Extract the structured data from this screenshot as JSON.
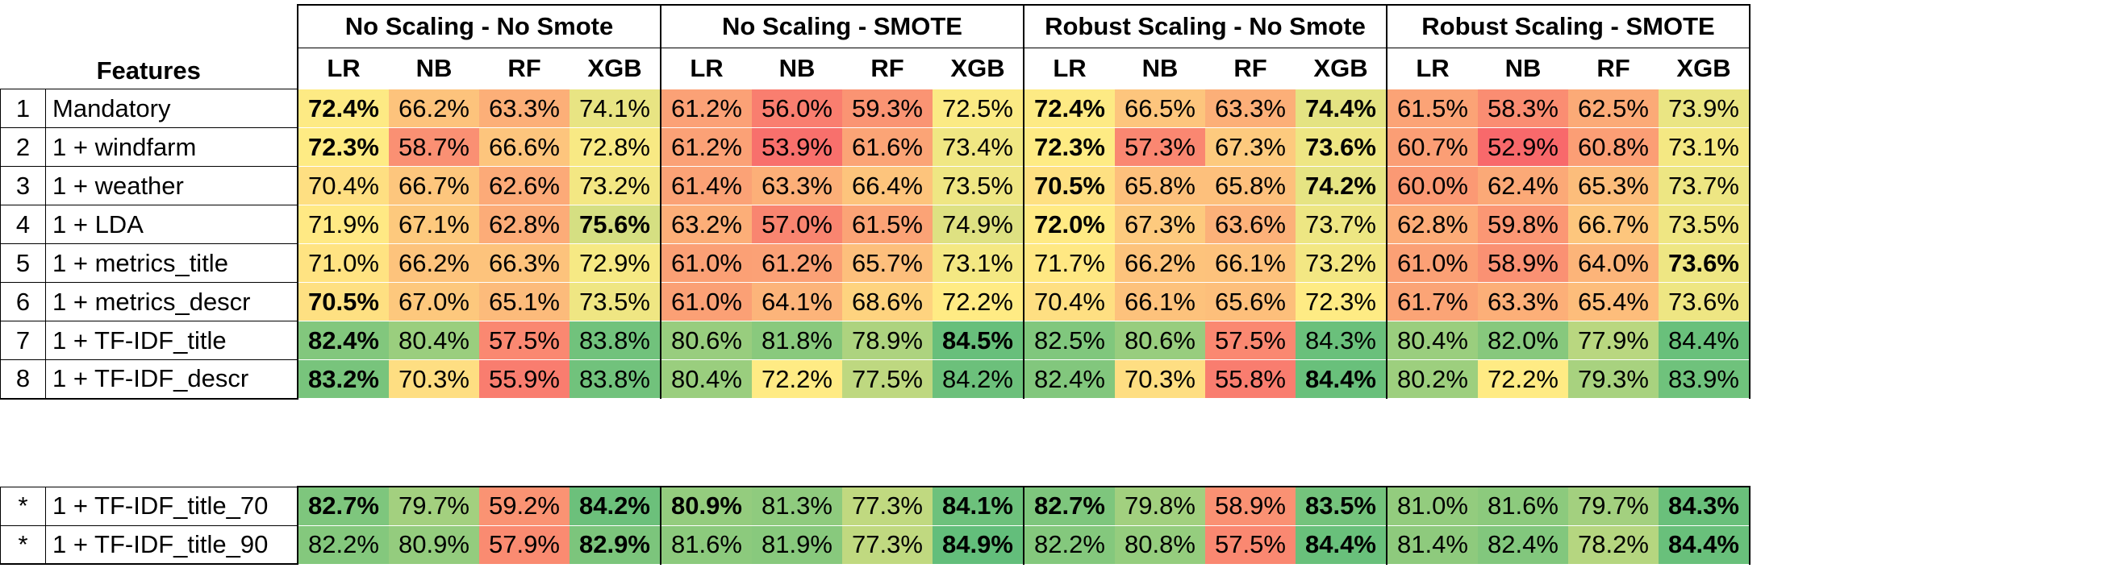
{
  "features_header": "Features",
  "groups": [
    "No Scaling - No Smote",
    "No Scaling - SMOTE",
    "Robust Scaling - No Smote",
    "Robust Scaling - SMOTE"
  ],
  "models": [
    "LR",
    "NB",
    "RF",
    "XGB"
  ],
  "rows": [
    {
      "num": "1",
      "feature": "Mandatory",
      "values": [
        "72.4%",
        "66.2%",
        "63.3%",
        "74.1%",
        "61.2%",
        "56.0%",
        "59.3%",
        "72.5%",
        "72.4%",
        "66.5%",
        "63.3%",
        "74.4%",
        "61.5%",
        "58.3%",
        "62.5%",
        "73.9%"
      ],
      "bold": [
        0,
        8,
        11
      ]
    },
    {
      "num": "2",
      "feature": "1 + windfarm",
      "values": [
        "72.3%",
        "58.7%",
        "66.6%",
        "72.8%",
        "61.2%",
        "53.9%",
        "61.6%",
        "73.4%",
        "72.3%",
        "57.3%",
        "67.3%",
        "73.6%",
        "60.7%",
        "52.9%",
        "60.8%",
        "73.1%"
      ],
      "bold": [
        0,
        8,
        11
      ]
    },
    {
      "num": "3",
      "feature": "1 + weather",
      "values": [
        "70.4%",
        "66.7%",
        "62.6%",
        "73.2%",
        "61.4%",
        "63.3%",
        "66.4%",
        "73.5%",
        "70.5%",
        "65.8%",
        "65.8%",
        "74.2%",
        "60.0%",
        "62.4%",
        "65.3%",
        "73.7%"
      ],
      "bold": [
        8,
        11
      ]
    },
    {
      "num": "4",
      "feature": "1 + LDA",
      "values": [
        "71.9%",
        "67.1%",
        "62.8%",
        "75.6%",
        "63.2%",
        "57.0%",
        "61.5%",
        "74.9%",
        "72.0%",
        "67.3%",
        "63.6%",
        "73.7%",
        "62.8%",
        "59.8%",
        "66.7%",
        "73.5%"
      ],
      "bold": [
        3,
        8
      ]
    },
    {
      "num": "5",
      "feature": "1 + metrics_title",
      "values": [
        "71.0%",
        "66.2%",
        "66.3%",
        "72.9%",
        "61.0%",
        "61.2%",
        "65.7%",
        "73.1%",
        "71.7%",
        "66.2%",
        "66.1%",
        "73.2%",
        "61.0%",
        "58.9%",
        "64.0%",
        "73.6%"
      ],
      "bold": [
        15
      ]
    },
    {
      "num": "6",
      "feature": "1 + metrics_descr",
      "values": [
        "70.5%",
        "67.0%",
        "65.1%",
        "73.5%",
        "61.0%",
        "64.1%",
        "68.6%",
        "72.2%",
        "70.4%",
        "66.1%",
        "65.6%",
        "72.3%",
        "61.7%",
        "63.3%",
        "65.4%",
        "73.6%"
      ],
      "bold": [
        0
      ]
    },
    {
      "num": "7",
      "feature": "1 + TF-IDF_title",
      "values": [
        "82.4%",
        "80.4%",
        "57.5%",
        "83.8%",
        "80.6%",
        "81.8%",
        "78.9%",
        "84.5%",
        "82.5%",
        "80.6%",
        "57.5%",
        "84.3%",
        "80.4%",
        "82.0%",
        "77.9%",
        "84.4%"
      ],
      "bold": [
        0,
        7
      ]
    },
    {
      "num": "8",
      "feature": "1 + TF-IDF_descr",
      "values": [
        "83.2%",
        "70.3%",
        "55.9%",
        "83.8%",
        "80.4%",
        "72.2%",
        "77.5%",
        "84.2%",
        "82.4%",
        "70.3%",
        "55.8%",
        "84.4%",
        "80.2%",
        "72.2%",
        "79.3%",
        "83.9%"
      ],
      "bold": [
        0,
        11
      ]
    }
  ],
  "star_rows": [
    {
      "num": "*",
      "feature": "1 + TF-IDF_title_70",
      "values": [
        "82.7%",
        "79.7%",
        "59.2%",
        "84.2%",
        "80.9%",
        "81.3%",
        "77.3%",
        "84.1%",
        "82.7%",
        "79.8%",
        "58.9%",
        "83.5%",
        "81.0%",
        "81.6%",
        "79.7%",
        "84.3%"
      ],
      "bold": [
        0,
        3,
        4,
        7,
        8,
        11,
        15
      ]
    },
    {
      "num": "*",
      "feature": "1 + TF-IDF_title_90",
      "values": [
        "82.2%",
        "80.9%",
        "57.9%",
        "82.9%",
        "81.6%",
        "81.9%",
        "77.3%",
        "84.9%",
        "82.2%",
        "80.8%",
        "57.5%",
        "84.4%",
        "81.4%",
        "82.4%",
        "78.2%",
        "84.4%"
      ],
      "bold": [
        3,
        7,
        11,
        15
      ]
    }
  ],
  "colors": {
    "low": "#f8696b",
    "mid": "#ffeb84",
    "high": "#63be7b"
  }
}
